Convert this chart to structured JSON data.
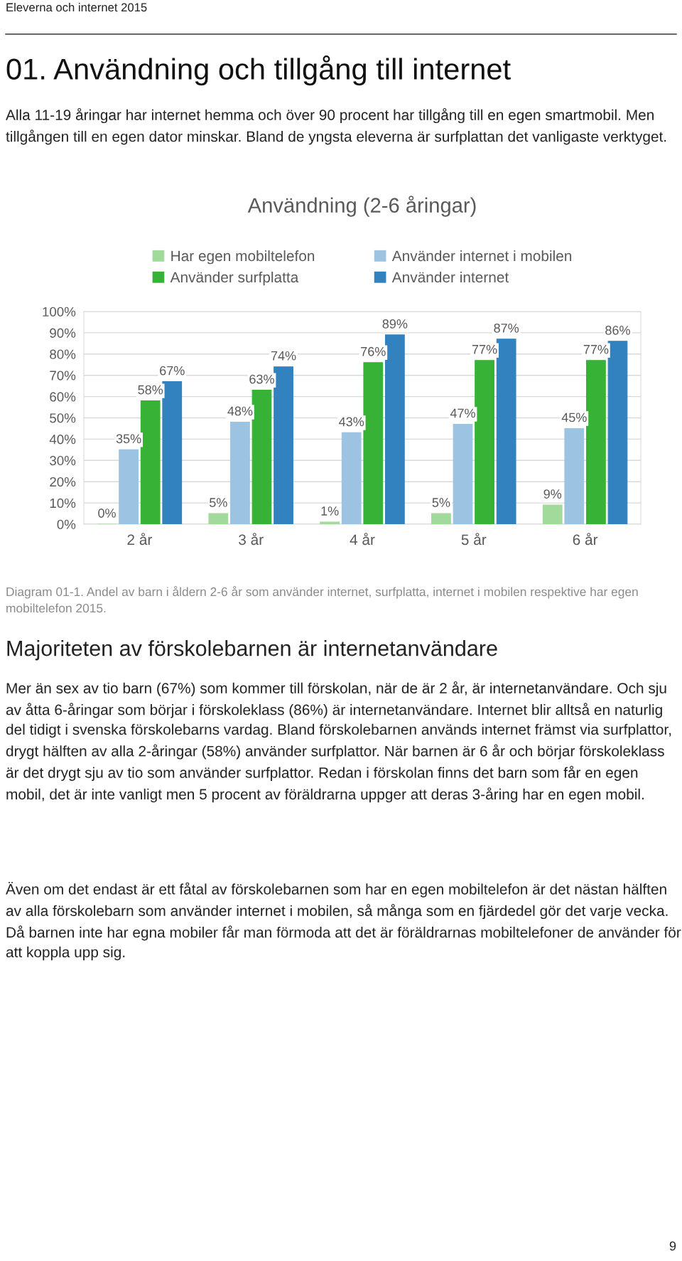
{
  "chart_data": {
    "type": "bar",
    "title": "Användning (2-6 åringar)",
    "categories": [
      "2 år",
      "3 år",
      "4 år",
      "5 år",
      "6 år"
    ],
    "series": [
      {
        "name": "Har egen mobiltelefon",
        "color": "#a1da9b",
        "values": [
          0,
          5,
          1,
          5,
          9
        ],
        "value_labels": [
          "0%",
          "5%",
          "1%",
          "5%",
          "9%"
        ]
      },
      {
        "name": "Använder internet i mobilen",
        "color": "#9dc3e2",
        "values": [
          35,
          48,
          43,
          47,
          45
        ],
        "value_labels": [
          "35%",
          "48%",
          "43%",
          "47%",
          "45%"
        ]
      },
      {
        "name": "Använder surfplatta",
        "color": "#37b236",
        "values": [
          58,
          63,
          76,
          77,
          77
        ],
        "value_labels": [
          "58%",
          "63%",
          "76%",
          "77%",
          "77%"
        ]
      },
      {
        "name": "Använder internet",
        "color": "#3282c0",
        "values": [
          67,
          74,
          89,
          87,
          86
        ],
        "value_labels": [
          "67%",
          "74%",
          "89%",
          "87%",
          "86%"
        ]
      }
    ],
    "ylim": [
      0,
      100
    ],
    "yticks": [
      {
        "value": 0,
        "label": "0%"
      },
      {
        "value": 10,
        "label": "10%"
      },
      {
        "value": 20,
        "label": "20%"
      },
      {
        "value": 30,
        "label": "30%"
      },
      {
        "value": 40,
        "label": "40%"
      },
      {
        "value": 50,
        "label": "50%"
      },
      {
        "value": 60,
        "label": "60%"
      },
      {
        "value": 70,
        "label": "70%"
      },
      {
        "value": 80,
        "label": "80%"
      },
      {
        "value": 90,
        "label": "90%"
      },
      {
        "value": 100,
        "label": "100%"
      }
    ],
    "grid": "y",
    "legend": "top",
    "annotations": [
      "Eleverna och internet 2015",
      "01. Användning och tillgång till internet",
      "Alla 11-19 åringar har internet hemma och över 90 procent har tillgång till en egen smartmobil. Men tillgången till en egen dator minskar. Bland de yngsta eleverna är surfplattan det vanligaste verktyget.",
      "Diagram 01-1. Andel av barn i åldern 2-6 år som använder internet, surfplatta, internet i mobilen respektive har egen mobiltelefon 2015.",
      "Majoriteten av förskolebarnen är internetanvändare",
      "Mer än sex av tio barn (67%) som kommer till förskolan, när de är 2 år, är internetanvändare. Och sju av åtta 6-åringar som börjar i förskoleklass (86%) är internetanvändare. Internet blir alltså en naturlig del tidigt i svenska förskolebarns vardag. Bland förskolebarnen används internet främst via surfplattor, drygt hälften av alla 2-åringar (58%) använder surfplattor. När barnen är 6 år och börjar förskoleklass är det drygt sju av tio som använder surfplattor. Redan i förskolan finns det barn som får en egen mobil, det är inte vanligt men 5 procent av föräldrarna uppger att deras 3-åring har en egen mobil.",
      "Även om det endast är ett fåtal av förskolebarnen som har en egen mobiltelefon är det nästan hälften av alla förskolebarn som använder internet i mobilen, så många som en fjärdedel gör det varje vecka. Då barnen inte har egna mobiler får man förmoda att det är föräldrarnas mobiltelefoner de använder för att koppla upp sig.",
      "9"
    ]
  }
}
